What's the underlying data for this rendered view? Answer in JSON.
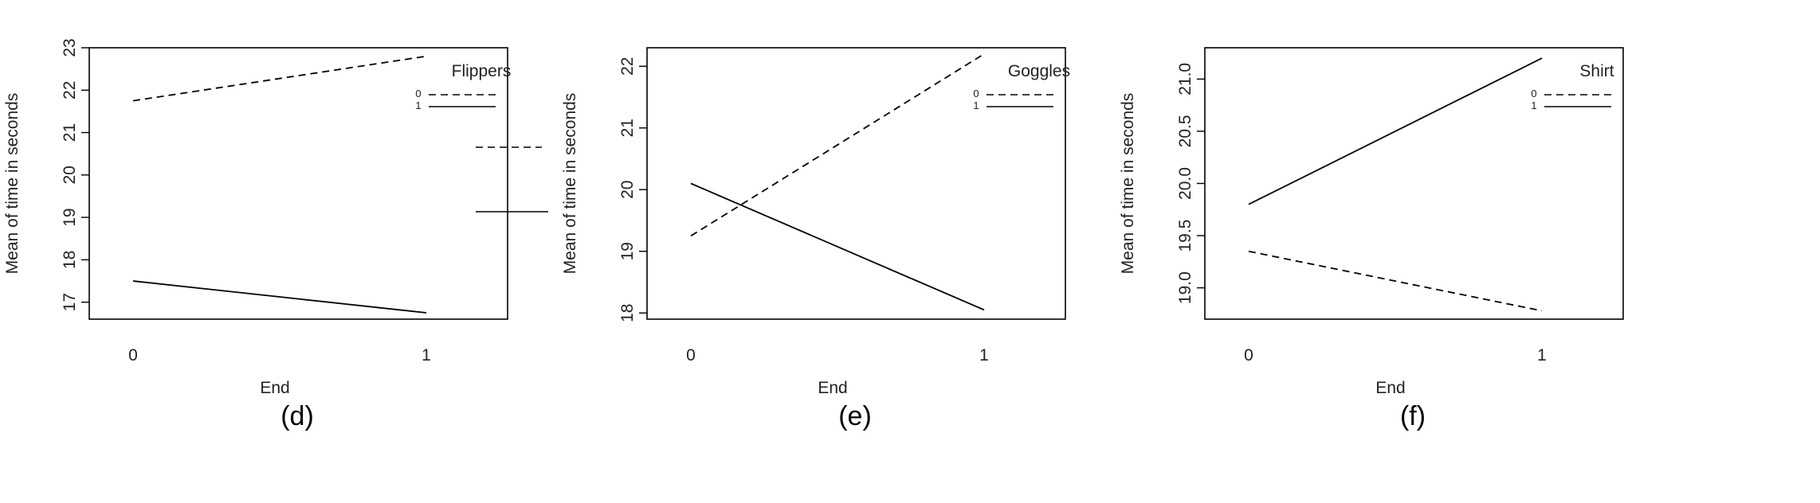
{
  "figure": {
    "background": "#ffffff",
    "line_color": "#000000"
  },
  "chart_data": [
    {
      "type": "line",
      "caption": "(d)",
      "xlabel": "End",
      "ylabel": "Mean of time in seconds",
      "categories": [
        "0",
        "1"
      ],
      "ylim": [
        16.6,
        23.0
      ],
      "yticks": [
        "17",
        "18",
        "19",
        "20",
        "21",
        "22",
        "23"
      ],
      "legend_title": "Flippers",
      "legend_position": "top-right",
      "series": [
        {
          "name": "0",
          "values": [
            21.75,
            22.8
          ],
          "dash": "dashed"
        },
        {
          "name": "1",
          "values": [
            17.5,
            16.75
          ],
          "dash": "solid"
        }
      ]
    },
    {
      "type": "line",
      "caption": "(e)",
      "xlabel": "End",
      "ylabel": "Mean of time in seconds",
      "categories": [
        "0",
        "1"
      ],
      "ylim": [
        17.9,
        22.3
      ],
      "yticks": [
        "18",
        "19",
        "20",
        "21",
        "22"
      ],
      "legend_title": "Goggles",
      "legend_position": "top-right",
      "series": [
        {
          "name": "0",
          "values": [
            19.25,
            22.2
          ],
          "dash": "dashed"
        },
        {
          "name": "1",
          "values": [
            20.1,
            18.05
          ],
          "dash": "solid"
        }
      ]
    },
    {
      "type": "line",
      "caption": "(f)",
      "xlabel": "End",
      "ylabel": "Mean of time in seconds",
      "categories": [
        "0",
        "1"
      ],
      "ylim": [
        18.7,
        21.3
      ],
      "yticks": [
        "19.0",
        "19.5",
        "20.0",
        "20.5",
        "21.0"
      ],
      "legend_title": "Shirt",
      "legend_position": "top-right",
      "series": [
        {
          "name": "0",
          "values": [
            19.35,
            18.78
          ],
          "dash": "dashed"
        },
        {
          "name": "1",
          "values": [
            19.8,
            21.2
          ],
          "dash": "solid"
        }
      ]
    }
  ]
}
